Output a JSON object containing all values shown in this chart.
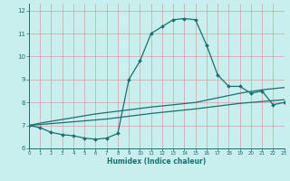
{
  "xlabel": "Humidex (Indice chaleur)",
  "bg_color": "#c8eeee",
  "grid_color": "#b0d8d8",
  "line_color": "#1a7070",
  "xlim": [
    0,
    23
  ],
  "ylim": [
    6,
    12.3
  ],
  "yticks": [
    6,
    7,
    8,
    9,
    10,
    11,
    12
  ],
  "xticks": [
    0,
    1,
    2,
    3,
    4,
    5,
    6,
    7,
    8,
    9,
    10,
    11,
    12,
    13,
    14,
    15,
    16,
    17,
    18,
    19,
    20,
    21,
    22,
    23
  ],
  "hours": [
    0,
    1,
    2,
    3,
    4,
    5,
    6,
    7,
    8,
    9,
    10,
    11,
    12,
    13,
    14,
    15,
    16,
    17,
    18,
    19,
    20,
    21,
    22,
    23
  ],
  "main_curve": [
    7.0,
    6.9,
    6.7,
    6.6,
    6.55,
    6.45,
    6.4,
    6.45,
    6.65,
    9.0,
    9.8,
    11.0,
    11.3,
    11.6,
    11.65,
    11.6,
    10.5,
    9.2,
    8.7,
    8.7,
    8.4,
    8.5,
    7.9,
    8.0
  ],
  "upper_line": [
    7.0,
    7.1,
    7.18,
    7.26,
    7.34,
    7.42,
    7.5,
    7.56,
    7.62,
    7.68,
    7.74,
    7.8,
    7.85,
    7.9,
    7.95,
    8.0,
    8.1,
    8.2,
    8.3,
    8.4,
    8.48,
    8.55,
    8.6,
    8.65
  ],
  "lower_line": [
    7.0,
    7.04,
    7.08,
    7.12,
    7.16,
    7.2,
    7.24,
    7.28,
    7.34,
    7.4,
    7.46,
    7.52,
    7.57,
    7.62,
    7.67,
    7.72,
    7.78,
    7.84,
    7.9,
    7.96,
    8.0,
    8.04,
    8.08,
    8.12
  ]
}
